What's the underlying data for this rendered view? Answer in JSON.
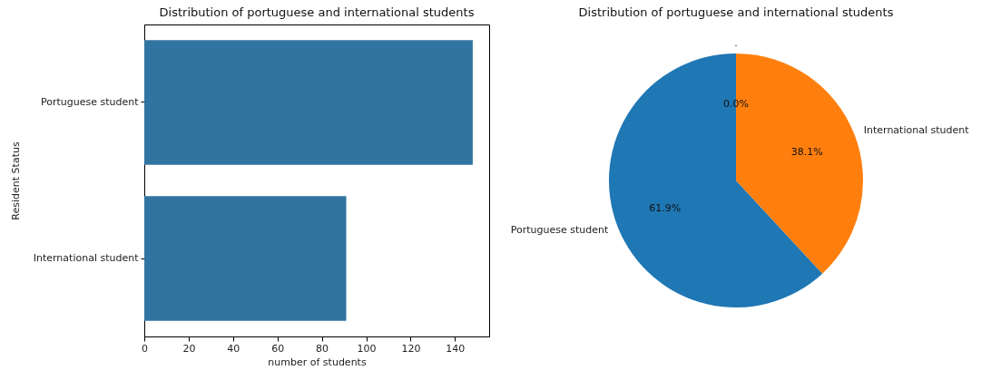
{
  "chart_data": [
    {
      "type": "bar",
      "title": "Distribution of portuguese and international students",
      "orientation": "horizontal",
      "categories": [
        "Portuguese student",
        "International student"
      ],
      "values": [
        148,
        91
      ],
      "color": "#3274a1",
      "xlim": [
        0,
        155.4
      ],
      "xticks": [
        0,
        20,
        40,
        60,
        80,
        100,
        120,
        140
      ],
      "xlabel": "number of students",
      "ylabel": "Resident Status",
      "grid": false
    },
    {
      "type": "pie",
      "title": "Distribution of portuguese and international students",
      "categories": [
        "Portuguese student",
        "International student",
        "."
      ],
      "values": [
        61.9,
        38.1,
        0
      ],
      "colors": [
        "#1f77b4",
        "#ff7f0e",
        "#2ca02c"
      ],
      "value_labels": [
        "61.9%",
        "38.1%",
        "0.0%"
      ]
    }
  ]
}
